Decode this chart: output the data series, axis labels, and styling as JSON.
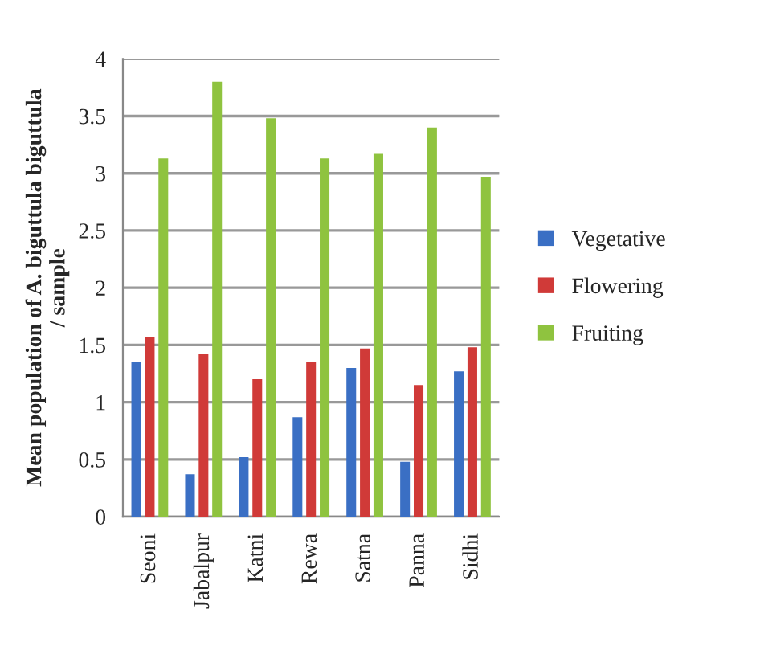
{
  "chart_data": {
    "type": "bar",
    "ylabel": "Mean population of A. biguttula biguttula\n/ sample",
    "categories": [
      "Seoni",
      "Jabalpur",
      "Katni",
      "Rewa",
      "Satna",
      "Panna",
      "Sidhi"
    ],
    "series": [
      {
        "name": "Vegetative",
        "color": "#3a6fc4",
        "values": [
          1.35,
          0.37,
          0.52,
          0.87,
          1.3,
          0.48,
          1.27
        ]
      },
      {
        "name": "Flowering",
        "color": "#d03a38",
        "values": [
          1.57,
          1.42,
          1.2,
          1.35,
          1.47,
          1.15,
          1.48
        ]
      },
      {
        "name": "Fruiting",
        "color": "#8fc33f",
        "values": [
          3.13,
          3.8,
          3.48,
          3.13,
          3.17,
          3.4,
          2.97
        ]
      }
    ],
    "ylim": [
      0,
      4
    ],
    "yticks": [
      0,
      0.5,
      1,
      1.5,
      2,
      2.5,
      3,
      3.5,
      4
    ],
    "grid": "y",
    "legend": "right"
  }
}
